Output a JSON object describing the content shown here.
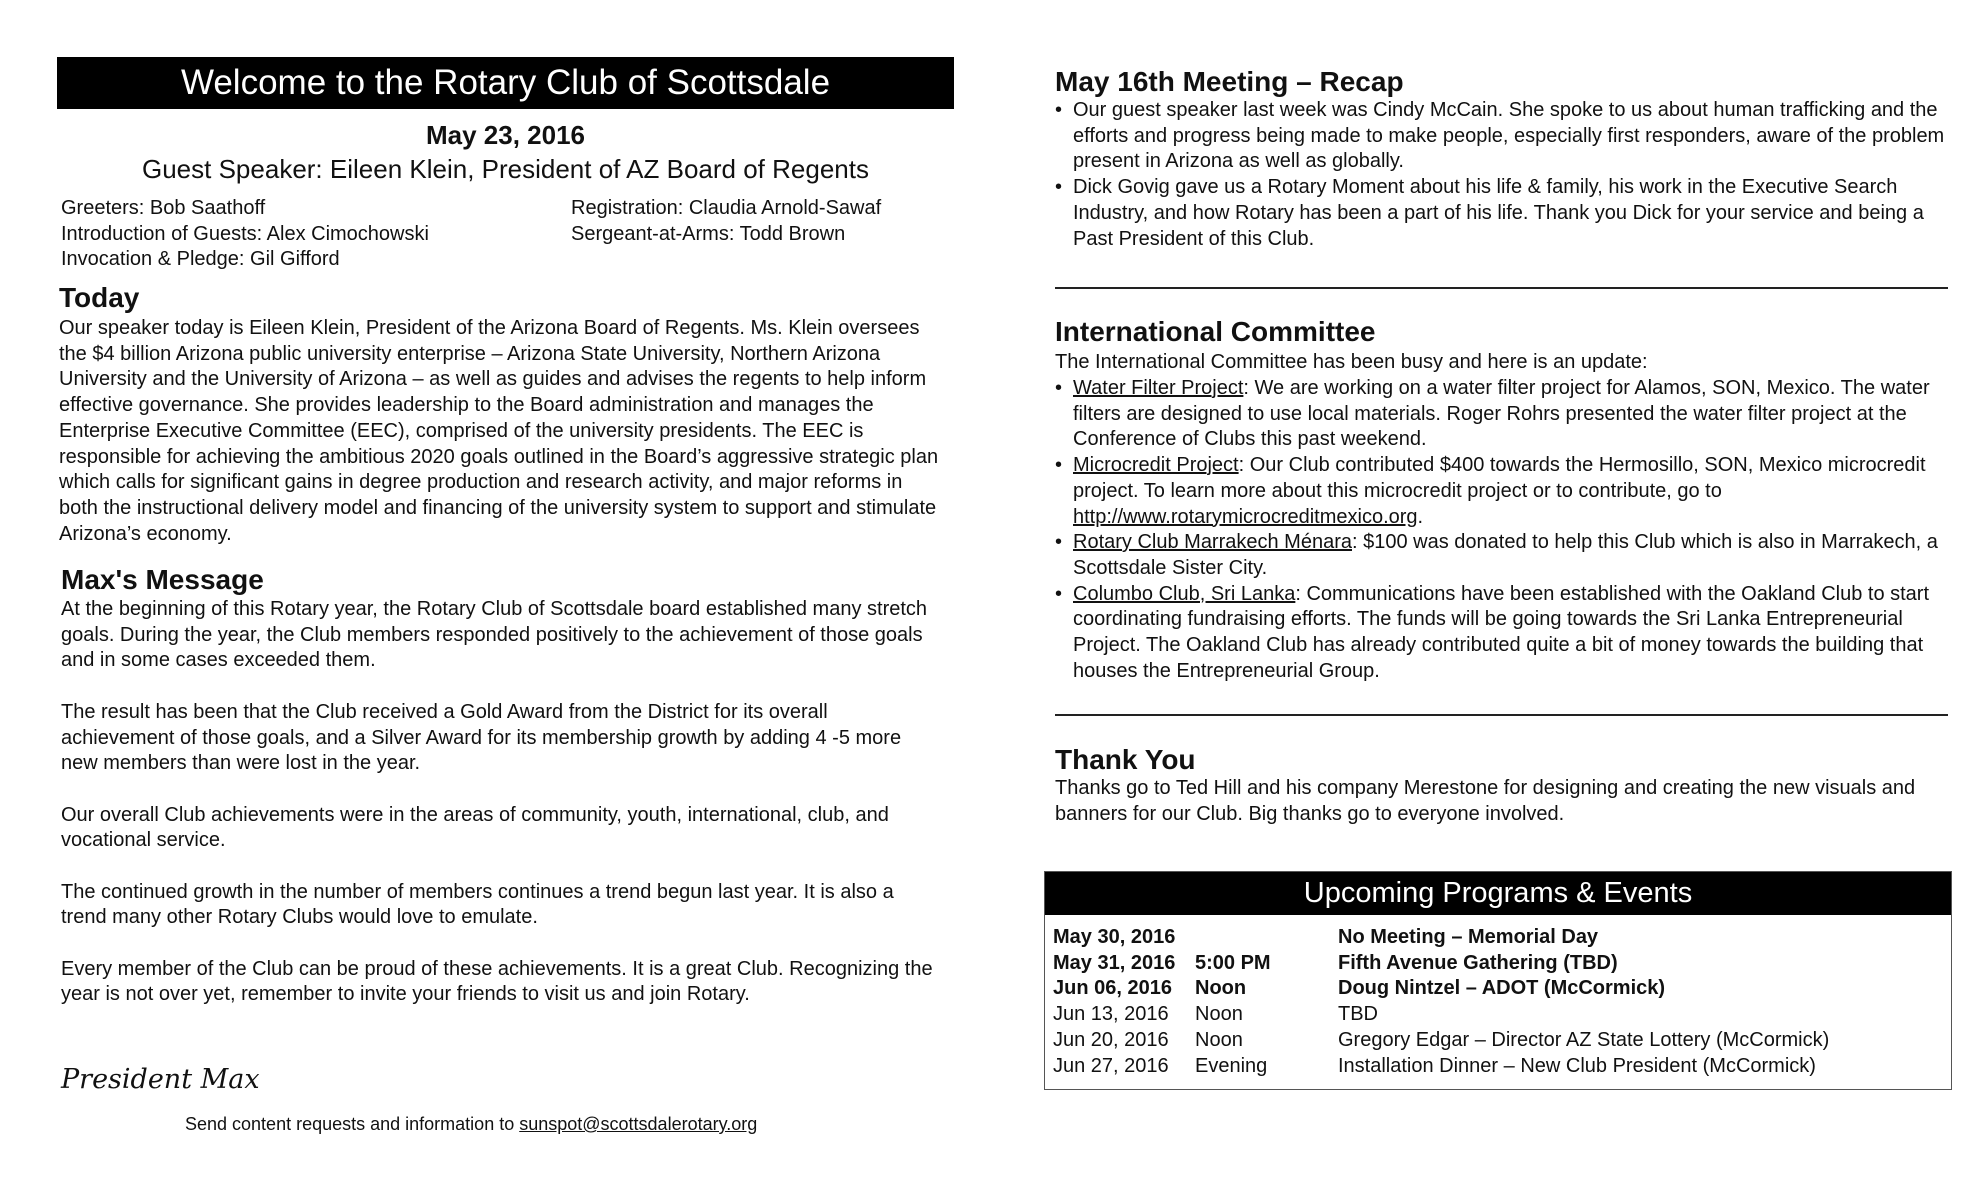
{
  "left": {
    "banner": "Welcome to the Rotary Club of Scottsdale",
    "date": "May 23, 2016",
    "guest": "Guest Speaker: Eileen Klein, President of AZ Board of Regents",
    "roles_left": [
      "Greeters: Bob Saathoff",
      "Introduction of Guests: Alex Cimochowski",
      "Invocation & Pledge: Gil Gifford"
    ],
    "roles_right": [
      "Registration: Claudia Arnold-Sawaf",
      "Sergeant-at-Arms: Todd Brown"
    ],
    "today_heading": "Today",
    "today_text": "Our speaker today is Eileen Klein, President of the Arizona Board of Regents. Ms. Klein oversees the $4 billion Arizona public university enterprise – Arizona State University, Northern Arizona University and the University of Arizona – as well as guides and advises the regents to help inform effective governance. She provides leadership to the Board administration and manages the Enterprise Executive Committee (EEC), comprised of the university presidents. The EEC is responsible for achieving the ambitious 2020 goals outlined in the Board’s aggressive strategic plan which calls for significant gains in degree production and research activity, and major reforms in both the instructional delivery model and financing of the university system to support and stimulate Arizona’s economy.",
    "max_heading": "Max's Message",
    "max_paras": [
      "At the beginning of this Rotary year, the Rotary Club of Scottsdale board established many stretch goals. During the year, the Club members responded positively to the achievement of those goals and in some cases exceeded them.",
      "The result has been that the Club received a Gold Award from the District for its overall achievement of those goals, and a Silver Award for its membership growth by adding 4 -5 more new members than were lost in the year.",
      "Our overall Club achievements were in the areas of community, youth, international, club, and vocational service.",
      "The continued growth in the number of members continues a trend begun last year. It is also a trend many other Rotary Clubs would love to emulate.",
      "Every member of the Club can be proud of these achievements. It is a great Club. Recognizing the year is not over yet, remember to invite your friends to visit us and join Rotary."
    ],
    "signature": "President Max",
    "footer_text": "Send content requests and information to ",
    "footer_email": "sunspot@scottsdalerotary.org"
  },
  "right": {
    "recap_heading": "May 16th Meeting – Recap",
    "recap_items": [
      "Our guest speaker last week was Cindy McCain. She spoke to us about human trafficking and the efforts and progress being made to make people, especially first responders, aware of the problem present in Arizona as well as globally.",
      "Dick Govig gave us a Rotary Moment about his life & family, his work in the Executive Search Industry, and how Rotary has been a part of his life. Thank you Dick for your service and being a Past President of this Club."
    ],
    "intl_heading": "International Committee",
    "intl_intro": "The International Committee has been busy and here is an update:",
    "intl_items": [
      {
        "link": "Water Filter Project",
        "text": ": We are working on a water filter project for Alamos, SON, Mexico. The water filters are designed to use local materials. Roger Rohrs presented the water filter project at the Conference of Clubs this past weekend."
      },
      {
        "link": "Microcredit Project",
        "text": ": Our Club contributed $400 towards the Hermosillo, SON, Mexico microcredit project. To learn more about this microcredit project or to contribute, go to ",
        "url": "http://www.rotarymicrocreditmexico.org",
        "after": "."
      },
      {
        "link": "Rotary Club Marrakech Ménara",
        "text": ": $100 was donated to help this Club which is also in Marrakech, a Scottsdale Sister City."
      },
      {
        "link": "Columbo Club, Sri Lanka",
        "text": ": Communications have been established with the Oakland Club to start coordinating fundraising efforts. The funds will be going towards the Sri Lanka Entrepreneurial Project. The Oakland Club has already contributed quite a bit of money towards the building that houses the Entrepreneurial Group."
      }
    ],
    "thanks_heading": "Thank You",
    "thanks_text": "Thanks go to Ted Hill and his company Merestone for designing and creating the new visuals and banners for our Club. Big thanks go to everyone involved.",
    "events_heading": "Upcoming Programs & Events",
    "events": [
      {
        "date": "May 30, 2016",
        "time": "",
        "desc": "No Meeting – Memorial Day",
        "bold": true
      },
      {
        "date": "May 31, 2016",
        "time": "5:00 PM",
        "desc": "Fifth Avenue Gathering (TBD)",
        "bold": true
      },
      {
        "date": "Jun 06, 2016",
        "time": "Noon",
        "desc": "Doug Nintzel – ADOT (McCormick)",
        "bold": true
      },
      {
        "date": "Jun 13, 2016",
        "time": "Noon",
        "desc": "TBD",
        "bold": false
      },
      {
        "date": "Jun 20, 2016",
        "time": "Noon",
        "desc": "Gregory Edgar – Director AZ State Lottery (McCormick)",
        "bold": false
      },
      {
        "date": "Jun 27, 2016",
        "time": "Evening",
        "desc": "Installation Dinner – New Club President (McCormick)",
        "bold": false
      }
    ]
  }
}
